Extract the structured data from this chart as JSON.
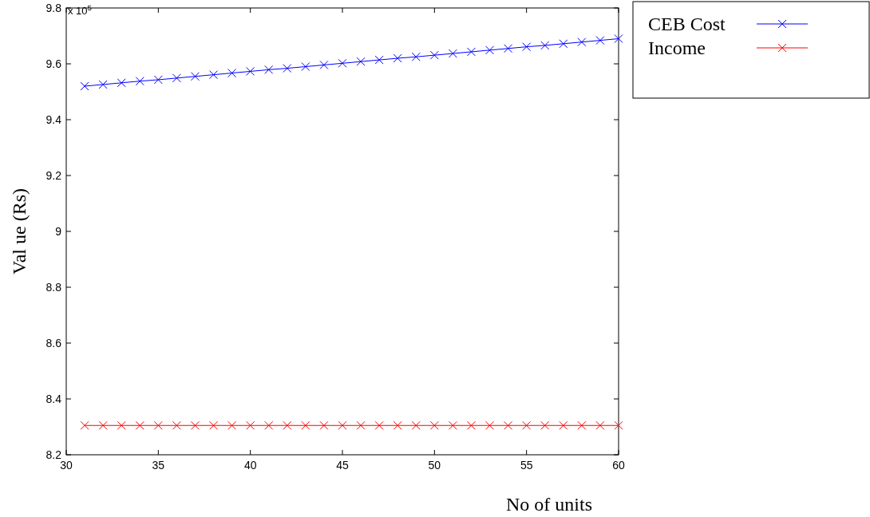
{
  "chart_data": {
    "type": "line",
    "xlabel": "No of units",
    "ylabel": "Val ue (Rs)",
    "annotations": [
      "x 10$^{5}$"
    ],
    "x": [
      31,
      32,
      33,
      34,
      35,
      36,
      37,
      38,
      39,
      40,
      41,
      42,
      43,
      44,
      45,
      46,
      47,
      48,
      49,
      50,
      51,
      52,
      53,
      54,
      55,
      56,
      57,
      58,
      59,
      60
    ],
    "series": [
      {
        "name": "CEB Cost",
        "color": "#0000ff",
        "values": [
          9.52,
          9.526,
          9.532,
          9.538,
          9.543,
          9.549,
          9.555,
          9.561,
          9.567,
          9.573,
          9.579,
          9.584,
          9.59,
          9.596,
          9.602,
          9.608,
          9.614,
          9.62,
          9.625,
          9.631,
          9.637,
          9.643,
          9.649,
          9.655,
          9.661,
          9.666,
          9.672,
          9.678,
          9.684,
          9.69
        ]
      },
      {
        "name": "Income",
        "color": "#ff0000",
        "values": [
          8.305,
          8.305,
          8.305,
          8.305,
          8.305,
          8.305,
          8.305,
          8.305,
          8.305,
          8.305,
          8.305,
          8.305,
          8.305,
          8.305,
          8.305,
          8.305,
          8.305,
          8.305,
          8.305,
          8.305,
          8.305,
          8.305,
          8.305,
          8.305,
          8.305,
          8.305,
          8.305,
          8.305,
          8.305,
          8.305
        ]
      }
    ],
    "xlim": [
      30,
      60
    ],
    "xticks": [
      30,
      35,
      40,
      45,
      50,
      55,
      60
    ],
    "ylim": [
      8.2,
      9.8
    ],
    "yticks": [
      8.2,
      8.4,
      8.6,
      8.8,
      9,
      9.2,
      9.4,
      9.6,
      9.8
    ],
    "grid": false,
    "legend": "top right",
    "marker": "cross",
    "line_style": "solid"
  }
}
